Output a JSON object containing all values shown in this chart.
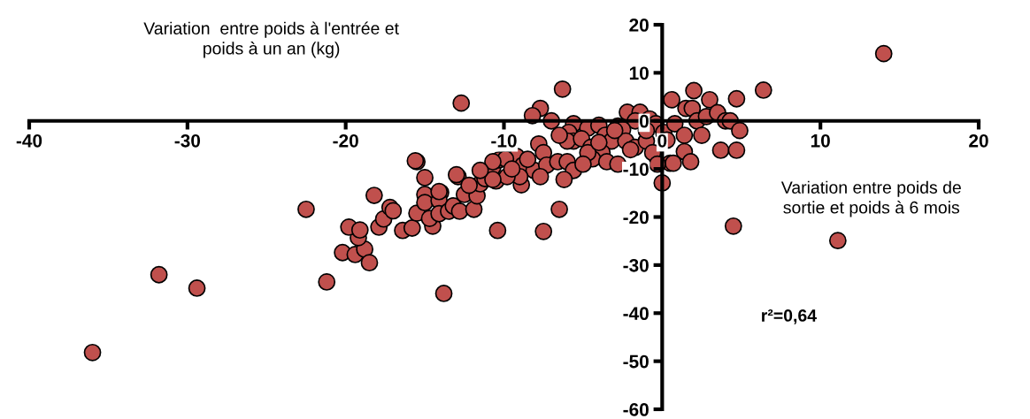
{
  "chart_data": {
    "type": "scatter",
    "xlabel": "Variation entre poids de\nsortie et poids à 6 mois",
    "ylabel": "Variation  entre poids à l'entrée et\npoids à un an (kg)",
    "annotations": [
      "r²=0,64"
    ],
    "xlim": [
      -40,
      20
    ],
    "ylim": [
      -60,
      20
    ],
    "xticks": [
      -40,
      -30,
      -20,
      -10,
      0,
      10,
      20
    ],
    "yticks": [
      -60,
      -50,
      -40,
      -30,
      -20,
      -10,
      0,
      10,
      20
    ],
    "grid": false,
    "legend": false,
    "marker": "circle",
    "series": [
      {
        "color": "#c0504d",
        "x": [
          -36.0,
          -31.8,
          -29.4,
          -22.5,
          -21.2,
          -20.2,
          -19.4,
          -18.8,
          -18.5,
          -19.2,
          -19.8,
          -19.1,
          -17.9,
          -17.6,
          -17.2,
          -17.0,
          -18.2,
          -16.4,
          -15.8,
          -15.5,
          -15.5,
          -15.0,
          -15.0,
          -15.0,
          -14.5,
          -14.7,
          -14.0,
          -14.1,
          -14.1,
          -13.5,
          -13.2,
          -12.8,
          -12.9,
          -12.5,
          -11.9,
          -11.7,
          -11.5,
          -11.2,
          -10.7,
          -10.3,
          -10.5,
          -10.4,
          -13.8,
          -8.9,
          -12.7,
          -6.3,
          -7.7,
          -8.2,
          -7.0,
          -5.6,
          -5.9,
          -5.6,
          -6.0,
          -4.7,
          -4.0,
          -5.1,
          -4.5,
          -3.6,
          -2.8,
          -2.2,
          -1.4,
          -0.8,
          -0.4,
          -1.7,
          -2.5,
          -3.2,
          -2.3,
          -1.7,
          -1.0,
          -0.6,
          -3.8,
          -4.4,
          -4.7,
          0.0,
          0.5,
          0.1,
          0.6,
          0.8,
          1.4,
          1.5,
          2.0,
          1.9,
          2.2,
          3.0,
          2.5,
          2.8,
          3.5,
          4.0,
          4.3,
          4.7,
          4.9,
          6.4,
          3.7,
          4.7,
          1.4,
          1.8,
          0.7,
          -7.8,
          -7.5,
          -9.2,
          -9.9,
          -8.8,
          -8.1,
          -7.3,
          -6.6,
          -6.0,
          -5.6,
          -6.2,
          -7.7,
          -9.0,
          -9.8,
          -10.7,
          -10.7,
          -11.5,
          -12.2,
          -13.0,
          -15.6,
          -14.1,
          -6.5,
          -7.5,
          11.1,
          14.0,
          4.5,
          -9.5,
          -8.5,
          -6.5,
          -3.0,
          -2.0,
          -1.0,
          0.3,
          -0.3,
          -5.0,
          -4.0,
          -3.5,
          -2.8
        ],
        "values": [
          -48.2,
          -32.0,
          -34.8,
          -18.4,
          -33.5,
          -27.4,
          -27.8,
          -26.7,
          -29.5,
          -24.3,
          -22.1,
          -22.7,
          -22.1,
          -20.4,
          -18.0,
          -18.7,
          -15.5,
          -22.8,
          -22.3,
          -8.5,
          -19.2,
          -11.8,
          -15.3,
          -17.0,
          -21.9,
          -20.3,
          -14.9,
          -16.6,
          -19.3,
          -18.8,
          -17.7,
          -18.8,
          -11.6,
          -15.3,
          -18.4,
          -15.6,
          -13.1,
          -12.0,
          -9.6,
          -8.1,
          -12.5,
          -22.8,
          -35.9,
          -13.3,
          3.7,
          6.6,
          2.6,
          1.1,
          0.0,
          -0.6,
          -2.4,
          -4.2,
          -4.2,
          -1.5,
          -0.9,
          -3.7,
          -5.5,
          -3.0,
          -1.1,
          1.8,
          1.8,
          0.4,
          -0.6,
          0.0,
          -1.8,
          -4.2,
          -4.2,
          -5.5,
          -4.2,
          -6.6,
          -6.6,
          -7.9,
          -6.6,
          -12.9,
          -8.8,
          -2.4,
          4.4,
          -0.6,
          -3.0,
          2.6,
          6.3,
          2.6,
          0.0,
          4.4,
          -3.0,
          0.9,
          1.7,
          0.0,
          0.0,
          4.6,
          -2.0,
          6.4,
          -6.1,
          -6.1,
          -6.4,
          -8.5,
          -8.8,
          -4.8,
          -6.6,
          -7.4,
          -7.9,
          -9.2,
          -10.3,
          -9.2,
          -8.5,
          -8.5,
          -10.3,
          -12.2,
          -11.6,
          -11.6,
          -11.6,
          -12.2,
          -8.5,
          -10.3,
          -13.4,
          -11.2,
          -8.3,
          -14.7,
          -18.4,
          -23.0,
          -24.9,
          14.0,
          -21.9,
          -10.0,
          -8.0,
          -3.0,
          -2.0,
          -6.0,
          -2.0,
          -4.0,
          -9.0,
          -9.0,
          -4.5,
          -8.5,
          -9.0
        ]
      }
    ]
  }
}
